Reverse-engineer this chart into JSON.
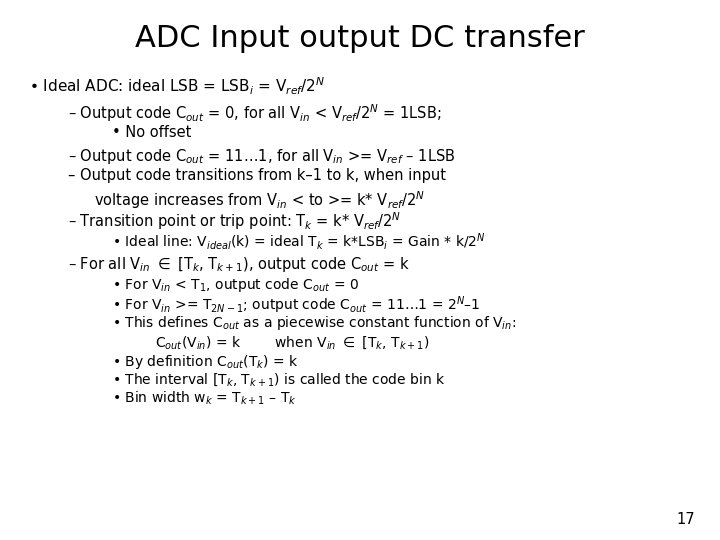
{
  "title": "ADC Input output DC transfer",
  "background_color": "#ffffff",
  "text_color": "#000000",
  "slide_number": "17",
  "title_fontsize": 22,
  "body_fontsize": 10.5
}
